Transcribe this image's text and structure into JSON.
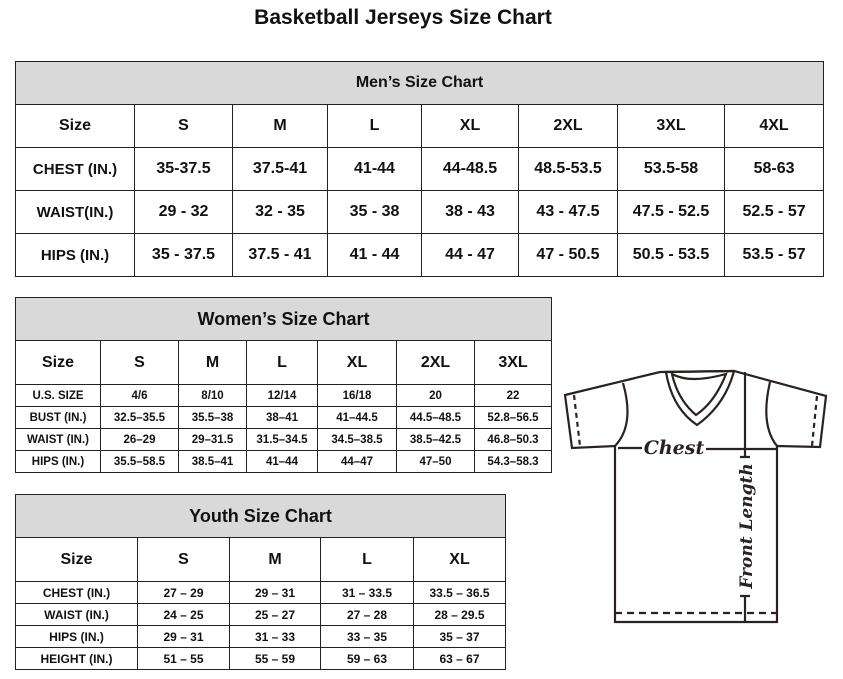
{
  "title": "Basketball Jerseys Size Chart",
  "men": {
    "heading": "Men’s Size Chart",
    "header": [
      "Size",
      "S",
      "M",
      "L",
      "XL",
      "2XL",
      "3XL",
      "4XL"
    ],
    "rows": [
      [
        "CHEST (IN.)",
        "35-37.5",
        "37.5-41",
        "41-44",
        "44-48.5",
        "48.5-53.5",
        "53.5-58",
        "58-63"
      ],
      [
        "WAIST(IN.)",
        "29 - 32",
        "32 - 35",
        "35 - 38",
        "38 - 43",
        "43 - 47.5",
        "47.5 - 52.5",
        "52.5 - 57"
      ],
      [
        "HIPS (IN.)",
        "35 - 37.5",
        "37.5 - 41",
        "41 - 44",
        "44 - 47",
        "47 - 50.5",
        "50.5 - 53.5",
        "53.5 - 57"
      ]
    ]
  },
  "women": {
    "heading": "Women’s Size Chart",
    "header": [
      "Size",
      "S",
      "M",
      "L",
      "XL",
      "2XL",
      "3XL"
    ],
    "rows": [
      [
        "U.S.  SIZE",
        "4/6",
        "8/10",
        "12/14",
        "16/18",
        "20",
        "22"
      ],
      [
        "BUST  (IN.)",
        "32.5–35.5",
        "35.5–38",
        "38–41",
        "41–44.5",
        "44.5–48.5",
        "52.8–56.5"
      ],
      [
        "WAIST  (IN.)",
        "26–29",
        "29–31.5",
        "31.5–34.5",
        "34.5–38.5",
        "38.5–42.5",
        "46.8–50.3"
      ],
      [
        "HIPS  (IN.)",
        "35.5–58.5",
        "38.5–41",
        "41–44",
        "44–47",
        "47–50",
        "54.3–58.3"
      ]
    ]
  },
  "youth": {
    "heading": "Youth Size Chart",
    "header": [
      "Size",
      "S",
      "M",
      "L",
      "XL"
    ],
    "rows": [
      [
        "CHEST  (IN.)",
        "27  –  29",
        "29  –  31",
        "31  –  33.5",
        "33.5  –  36.5"
      ],
      [
        "WAIST  (IN.)",
        "24  –  25",
        "25  –  27",
        "27  –  28",
        "28  –  29.5"
      ],
      [
        "HIPS  (IN.)",
        "29  –  31",
        "31  –  33",
        "33  –  35",
        "35  –  37"
      ],
      [
        "HEIGHT  (IN.)",
        "51  –  55",
        "55  –  59",
        "59  –  63",
        "63  –  67"
      ]
    ]
  },
  "diagram": {
    "chest_label": "Chest",
    "length_label": "Front Length"
  }
}
